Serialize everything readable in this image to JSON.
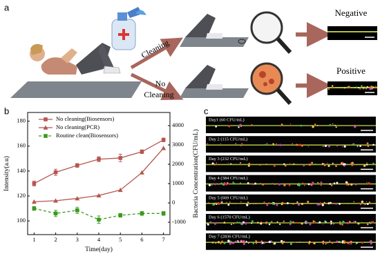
{
  "panel_a": {
    "label": "a",
    "arrow_top": "Cleaning",
    "arrow_bottom": [
      "No",
      "Cleaning"
    ],
    "result_top": "Negative",
    "result_bottom": "Positive"
  },
  "panel_b": {
    "label": "b"
  },
  "chart_data": {
    "type": "line",
    "xlabel": "Time(day)",
    "ylabel": "Intensity(a.u)",
    "y2label": "Bacteria Concentration(CFU/mL)",
    "x": [
      1,
      2,
      3,
      4,
      5,
      6,
      7
    ],
    "xlim": [
      0.7,
      7.3
    ],
    "xticks": [
      1,
      2,
      3,
      4,
      5,
      6,
      7
    ],
    "ylim": [
      89,
      187
    ],
    "yticks": [
      100,
      120,
      140,
      160,
      180
    ],
    "y2lim": [
      -1640,
      4680
    ],
    "y2ticks": [
      -1000,
      0,
      1000,
      2000,
      3000,
      4000
    ],
    "legend": "upper left",
    "series": [
      {
        "name": "No cleaning(Biosensors)",
        "color": "#b5564f",
        "marker": "square",
        "dash": false,
        "values": [
          130,
          139,
          144.5,
          149.5,
          150.5,
          155.5,
          165
        ],
        "errors": [
          2,
          2.5,
          1.5,
          2,
          3,
          1.5,
          1.5
        ]
      },
      {
        "name": "No cleaning(PCR)",
        "color": "#b5564f",
        "marker": "triangle",
        "dash": false,
        "axis": "y2",
        "values": [
          60,
          115,
          232,
          384,
          669,
          1570,
          2836
        ]
      },
      {
        "name": "Routine clean(Biosensors)",
        "color": "#3a9a1c",
        "marker": "square",
        "dash": true,
        "values": [
          110,
          106,
          108.5,
          101,
          104.5,
          106,
          106
        ],
        "errors": [
          1.5,
          2.5,
          2.5,
          3,
          1.5,
          1.5,
          1.5
        ]
      }
    ]
  },
  "panel_c": {
    "label": "c",
    "strips": [
      "Day1 (60 CFU/mL)",
      "Day 2 (115 CFU/mL)",
      "Day 3 (232 CFU/mL)",
      "Day 4 (384 CFU/mL)",
      "Day 5 (669 CFU/mL)",
      "Day 6 (1570 CFU/mL)",
      "Day 7 (2836 CFU/mL)"
    ]
  }
}
